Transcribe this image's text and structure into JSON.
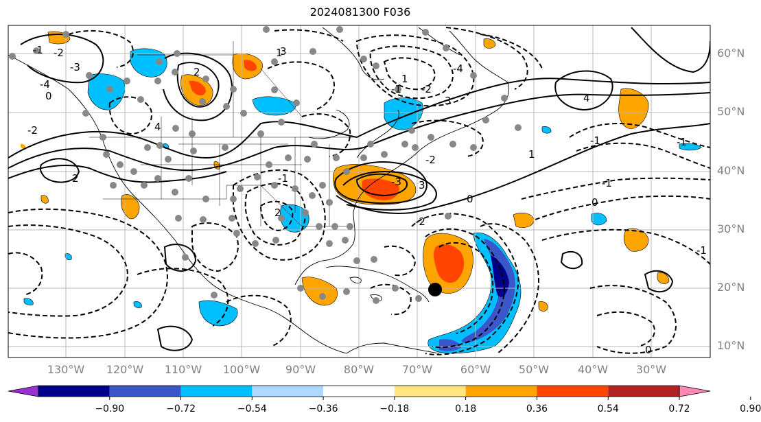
{
  "title": "2024081300 F036",
  "lat_labels": [
    "60°N",
    "50°N",
    "40°N",
    "30°N",
    "20°N",
    "10°N"
  ],
  "lon_labels": [
    "130°W",
    "120°W",
    "110°W",
    "100°W",
    "90°W",
    "80°W",
    "70°W",
    "60°W",
    "50°W",
    "40°W",
    "30°W"
  ],
  "colorbar": {
    "ticks": [
      "−0.90",
      "−0.72",
      "−0.54",
      "−0.36",
      "−0.18",
      "0.18",
      "0.36",
      "0.54",
      "0.72",
      "0.90"
    ],
    "colors": [
      "#9b30d0",
      "#00008b",
      "#3a56c8",
      "#00bfff",
      "#add8ff",
      "#ffffff",
      "#ffe680",
      "#ffa500",
      "#ff4500",
      "#b22222",
      "#ff88b4"
    ]
  },
  "contour_labels": [
    "-1",
    "-2",
    "-3",
    "-4",
    "0",
    "1",
    "2",
    "3",
    "4",
    "-1",
    "-2",
    "2",
    "-3",
    "3",
    "-2",
    "-1",
    "1",
    "2",
    "-2",
    "3",
    "-4",
    "4",
    "1",
    "0",
    "-2",
    "-1",
    "0",
    "-1",
    "-1",
    "-1",
    "0"
  ],
  "storm_marker": "black-circle-storm-center"
}
